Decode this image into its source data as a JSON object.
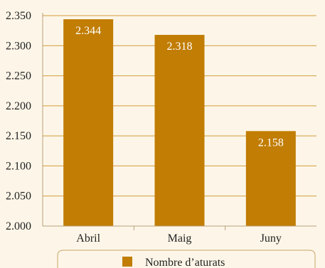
{
  "chart_data": {
    "type": "bar",
    "categories": [
      "Abril",
      "Maig",
      "Juny"
    ],
    "series": [
      {
        "name": "Nombre d’aturats",
        "values": [
          2344,
          2318,
          2158
        ],
        "data_labels": [
          "2.344",
          "2.318",
          "2.158"
        ]
      }
    ],
    "ylim": [
      2000,
      2350
    ],
    "yticks": [
      2000,
      2050,
      2100,
      2150,
      2200,
      2250,
      2300,
      2350
    ],
    "ytick_labels": [
      "2.000",
      "2.050",
      "2.100",
      "2.150",
      "2.200",
      "2.250",
      "2.300",
      "2.350"
    ],
    "title": "",
    "xlabel": "",
    "ylabel": "",
    "grid": "horizontal",
    "legend_position": "bottom"
  },
  "colors": {
    "bar": "#c17d04",
    "gridline": "#d29a3a",
    "axis": "#b9a07a",
    "background": "#fdf6e8",
    "legend_border": "#c9a46a"
  }
}
